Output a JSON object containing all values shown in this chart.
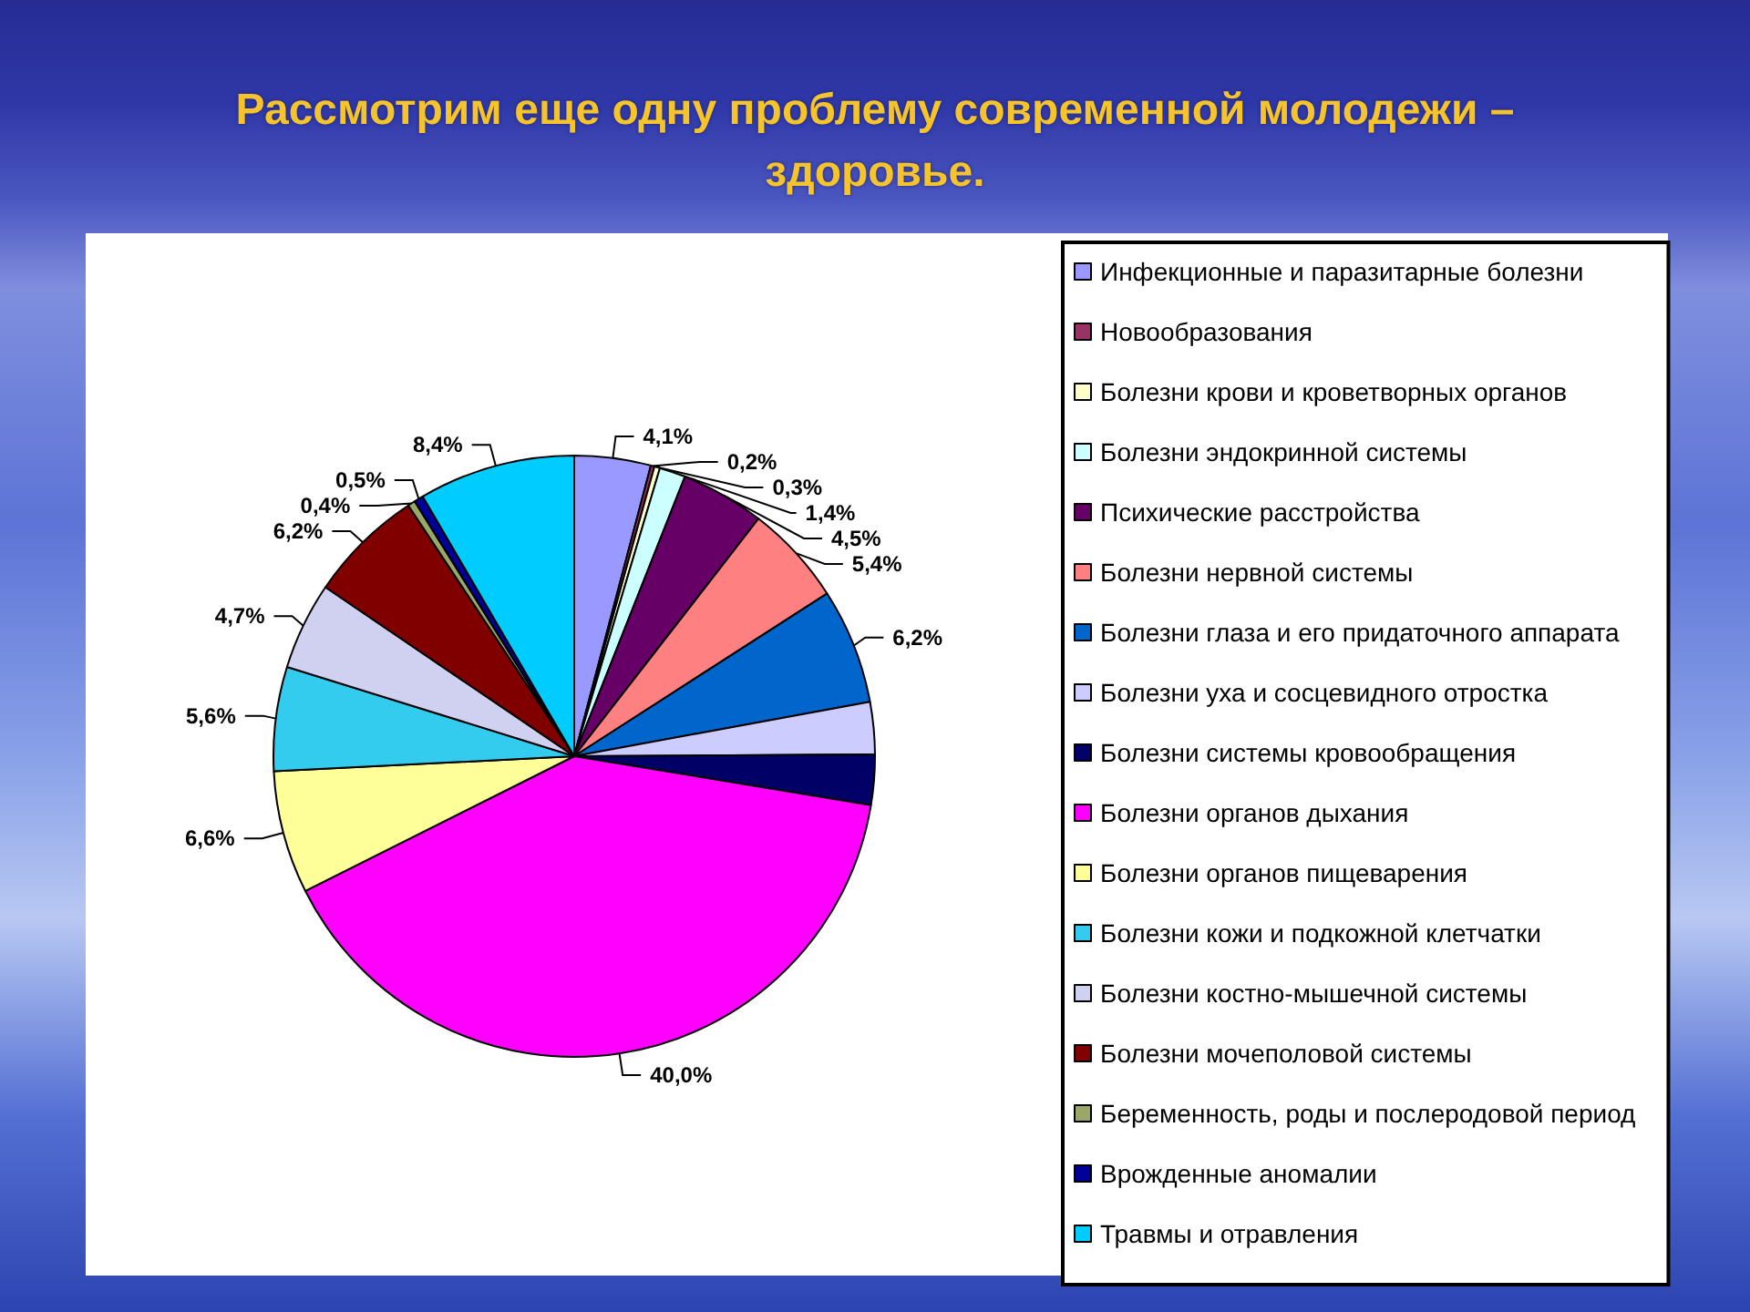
{
  "chart_data": {
    "type": "pie",
    "title": "Рассмотрим еще одну проблему современной молодежи – здоровье.",
    "categories": [
      "Инфекционные и паразитарные болезни",
      "Новообразования",
      "Болезни крови и кроветворных органов",
      "Болезни эндокринной системы",
      "Психические расстройства",
      "Болезни нервной системы",
      "Болезни глаза и его придаточного аппарата",
      "Болезни уха и сосцевидного отростка",
      "Болезни системы кровообращения",
      "Болезни органов дыхания",
      "Болезни органов пищеварения",
      "Болезни кожи и подкожной клетчатки",
      "Болезни костно-мышечной системы",
      "Болезни мочеполовой системы",
      "Беременность, роды и послеродовой период",
      "Врожденные аномалии",
      "Травмы и отравления"
    ],
    "values": [
      4.1,
      0.2,
      0.3,
      1.4,
      4.5,
      5.4,
      6.2,
      2.8,
      2.7,
      40.0,
      6.6,
      5.6,
      4.7,
      6.2,
      0.4,
      0.5,
      8.4
    ],
    "colors": [
      "#9999ff",
      "#993366",
      "#ffffcc",
      "#ccffff",
      "#660066",
      "#ff8080",
      "#0066cc",
      "#ccccff",
      "#000066",
      "#ff00ff",
      "#ffff99",
      "#33ccee",
      "#d0d0f0",
      "#800000",
      "#99a866",
      "#000099",
      "#00ccff"
    ],
    "value_labels": [
      "4,1%",
      "0,2%",
      "0,3%",
      "1,4%",
      "4,5%",
      "5,4%",
      "6,2%",
      null,
      null,
      "40,0%",
      "6,6%",
      "5,6%",
      "4,7%",
      "6,2%",
      "0,4%",
      "0,5%",
      "8,4%"
    ],
    "legend": "right"
  }
}
